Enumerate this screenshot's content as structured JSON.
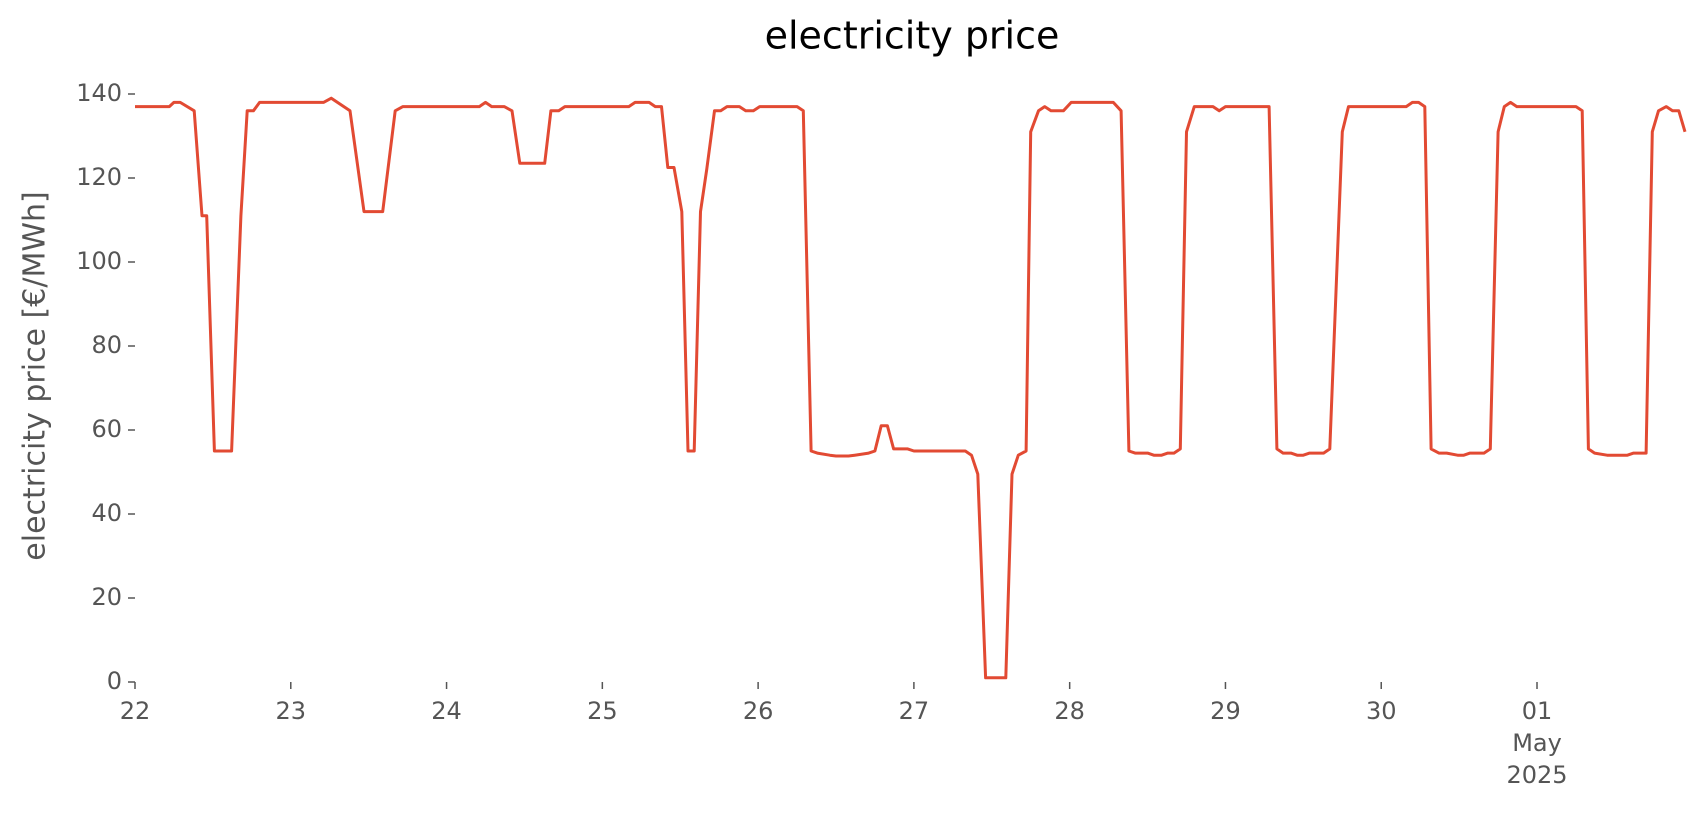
{
  "chart_data": {
    "type": "line",
    "title": "electricity price",
    "ylabel": "electricity price [€/MWh]",
    "x": [
      0,
      0.22,
      0.25,
      0.29,
      0.38,
      0.43,
      0.46,
      0.51,
      0.62,
      0.68,
      0.72,
      0.76,
      0.8,
      1.21,
      1.26,
      1.38,
      1.47,
      1.59,
      1.67,
      1.72,
      2.21,
      2.25,
      2.29,
      2.37,
      2.42,
      2.47,
      2.63,
      2.67,
      2.72,
      2.76,
      3.17,
      3.21,
      3.3,
      3.34,
      3.38,
      3.42,
      3.46,
      3.51,
      3.55,
      3.59,
      3.63,
      3.67,
      3.72,
      3.76,
      3.8,
      3.88,
      3.92,
      3.97,
      4.01,
      4.25,
      4.29,
      4.34,
      4.38,
      4.46,
      4.5,
      4.58,
      4.62,
      4.71,
      4.75,
      4.79,
      4.83,
      4.87,
      4.96,
      5.0,
      5.33,
      5.37,
      5.41,
      5.46,
      5.59,
      5.63,
      5.67,
      5.72,
      5.75,
      5.8,
      5.84,
      5.88,
      5.96,
      6.01,
      6.28,
      6.33,
      6.38,
      6.42,
      6.5,
      6.54,
      6.59,
      6.63,
      6.67,
      6.71,
      6.75,
      6.8,
      6.92,
      6.96,
      7.0,
      7.28,
      7.33,
      7.37,
      7.42,
      7.46,
      7.5,
      7.54,
      7.63,
      7.67,
      7.75,
      7.79,
      8.16,
      8.2,
      8.24,
      8.28,
      8.32,
      8.37,
      8.42,
      8.49,
      8.53,
      8.57,
      8.66,
      8.7,
      8.75,
      8.79,
      8.83,
      8.87,
      9.25,
      9.29,
      9.33,
      9.37,
      9.45,
      9.58,
      9.62,
      9.7,
      9.74,
      9.78,
      9.83,
      9.87,
      9.91,
      9.95
    ],
    "values": [
      137,
      137,
      138,
      138,
      136,
      111,
      111,
      55,
      55,
      111,
      136,
      136,
      138,
      138,
      139,
      136,
      112,
      112,
      136,
      137,
      137,
      138,
      137,
      137,
      136,
      123.5,
      123.5,
      136,
      136,
      137,
      137,
      138,
      138,
      137,
      137,
      122.5,
      122.5,
      112,
      55,
      55,
      112,
      122,
      136,
      136,
      137,
      137,
      136,
      136,
      137,
      137,
      136,
      55,
      54.5,
      54,
      53.8,
      53.8,
      54,
      54.5,
      55,
      61,
      61,
      55.5,
      55.5,
      55,
      55,
      54,
      49.5,
      1,
      1,
      49.5,
      54,
      55,
      131,
      136,
      137,
      136,
      136,
      138,
      138,
      136,
      55,
      54.5,
      54.5,
      54,
      54,
      54.5,
      54.5,
      55.5,
      131,
      137,
      137,
      136,
      137,
      137,
      55.5,
      54.5,
      54.5,
      54,
      54,
      54.5,
      54.5,
      55.5,
      131,
      137,
      137,
      138,
      138,
      137,
      55.5,
      54.5,
      54.5,
      54,
      54,
      54.5,
      54.5,
      55.5,
      131,
      137,
      138,
      137,
      137,
      136,
      55.5,
      54.5,
      54,
      54,
      54.5,
      54.5,
      131,
      136,
      137,
      136,
      136,
      131
    ],
    "color": "#e24a33",
    "xlim": [
      0,
      9.95
    ],
    "xticks": [
      {
        "value": 0,
        "label": "22"
      },
      {
        "value": 1,
        "label": "23"
      },
      {
        "value": 2,
        "label": "24"
      },
      {
        "value": 3,
        "label": "25"
      },
      {
        "value": 4,
        "label": "26"
      },
      {
        "value": 5,
        "label": "27"
      },
      {
        "value": 6,
        "label": "28"
      },
      {
        "value": 7,
        "label": "29"
      },
      {
        "value": 8,
        "label": "30"
      },
      {
        "value": 9,
        "label": "01"
      }
    ],
    "xtick_sublabels": [
      "May",
      "2025"
    ],
    "ylim": [
      0,
      140
    ],
    "yticks": [
      0,
      20,
      40,
      60,
      80,
      100,
      120,
      140
    ],
    "grid": false
  }
}
